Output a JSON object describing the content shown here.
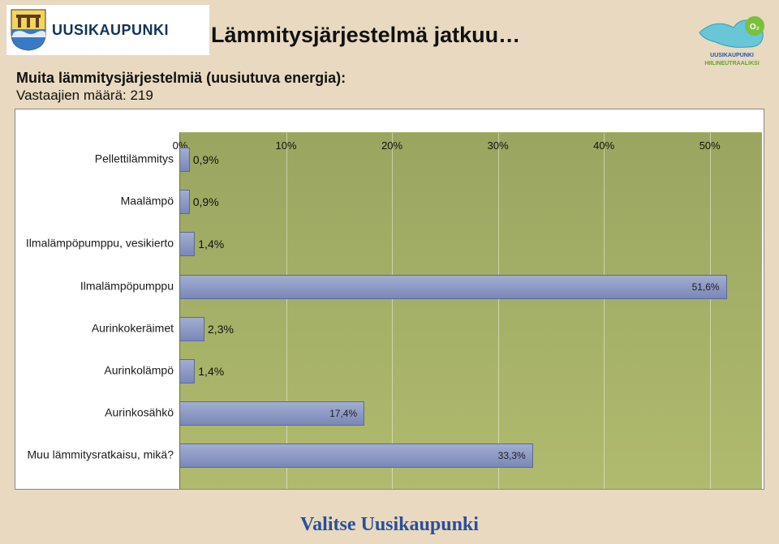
{
  "header": {
    "brand_text": "UUSIKAUPUNKI",
    "slide_title": "Lämmitysjärjestelmä jatkuu…"
  },
  "subtitle": "Muita lämmitysjärjestelmiä (uusiutuva energia):",
  "respondents": "Vastaajien määrä: 219",
  "chart": {
    "type": "bar-horizontal",
    "background_top": "#9aa560",
    "background_bottom": "#b0bb6f",
    "bar_fill_top": "#a2add0",
    "bar_fill_bottom": "#7a88b8",
    "bar_border": "#5c6a96",
    "grid_color": "rgba(255,255,255,0.45)",
    "xlim": [
      0,
      55
    ],
    "x_ticks": [
      {
        "value": 0,
        "label": "0%"
      },
      {
        "value": 10,
        "label": "10%"
      },
      {
        "value": 20,
        "label": "20%"
      },
      {
        "value": 30,
        "label": "30%"
      },
      {
        "value": 40,
        "label": "40%"
      },
      {
        "value": 50,
        "label": "50%"
      }
    ],
    "rows": [
      {
        "key": "pell",
        "label": "Pellettilämmitys",
        "value": 0.9,
        "display": "0,9%",
        "label_inside": false
      },
      {
        "key": "maa",
        "label": "Maalämpö",
        "value": 0.9,
        "display": "0,9%",
        "label_inside": false
      },
      {
        "key": "ilpv",
        "label": "Ilmalämpöpumppu, vesikierto",
        "value": 1.4,
        "display": "1,4%",
        "label_inside": false
      },
      {
        "key": "ilp",
        "label": "Ilmalämpöpumppu",
        "value": 51.6,
        "display": "51,6%",
        "label_inside": true
      },
      {
        "key": "aker",
        "label": "Aurinkokeräimet",
        "value": 2.3,
        "display": "2,3%",
        "label_inside": false
      },
      {
        "key": "alam",
        "label": "Aurinkolämpö",
        "value": 1.4,
        "display": "1,4%",
        "label_inside": false
      },
      {
        "key": "asah",
        "label": "Aurinkosähkö",
        "value": 17.4,
        "display": "17,4%",
        "label_inside": true
      },
      {
        "key": "muu",
        "label": "Muu lämmitysratkaisu, mikä?",
        "value": 33.3,
        "display": "33,3%",
        "label_inside": true
      }
    ],
    "row_spacing_pct": 11.8,
    "first_row_offset_pct": 7.5
  },
  "footer": "Valitse Uusikaupunki",
  "right_logo": {
    "top_text": "UUSIKAUPUNKI",
    "bottom_text": "HIILINEUTRAALIKSI",
    "badge": "O₂"
  }
}
